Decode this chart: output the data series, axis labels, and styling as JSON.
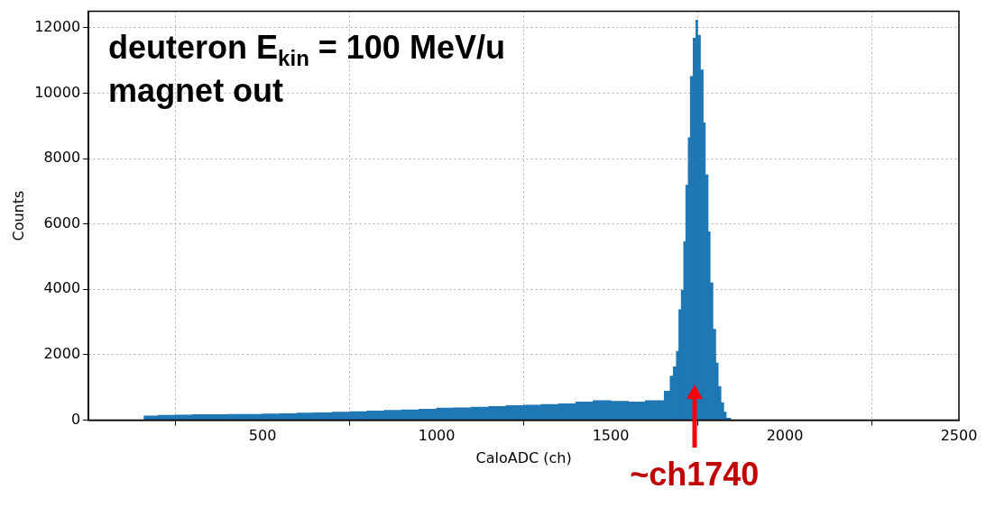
{
  "chart_data": {
    "type": "histogram",
    "xlabel": "CaloADC (ch)",
    "ylabel": "Counts",
    "color": "#1f77b4",
    "bins": [
      160,
      200,
      250,
      300,
      350,
      400,
      450,
      500,
      550,
      600,
      650,
      700,
      750,
      800,
      850,
      900,
      950,
      1000,
      1050,
      1100,
      1150,
      1200,
      1250,
      1300,
      1350,
      1400,
      1450,
      1500,
      1550,
      1600,
      1654,
      1671,
      1680,
      1689,
      1696,
      1703,
      1710,
      1716,
      1723,
      1729,
      1737,
      1745,
      1749,
      1757,
      1765,
      1771,
      1779,
      1785,
      1793,
      1801,
      1808,
      1816,
      1824,
      1831,
      1844
    ],
    "values": [
      130,
      150,
      160,
      170,
      170,
      180,
      180,
      190,
      200,
      220,
      230,
      250,
      260,
      280,
      300,
      320,
      340,
      370,
      380,
      400,
      420,
      450,
      460,
      480,
      500,
      560,
      600,
      580,
      560,
      600,
      890,
      1350,
      1630,
      2110,
      3380,
      3980,
      5460,
      7190,
      8640,
      10510,
      11680,
      12230,
      11770,
      10710,
      9090,
      7500,
      5760,
      4200,
      2780,
      1750,
      1030,
      540,
      250,
      60
    ],
    "xlim": [
      0,
      2500
    ],
    "xticks": [
      500,
      1000,
      1500,
      2000,
      2500
    ],
    "ylim": [
      0,
      12500
    ],
    "yticks": [
      0,
      2000,
      4000,
      6000,
      8000,
      10000,
      12000
    ],
    "grid": true,
    "annotations": [
      "deuteron E$_{kin}$ = 100 MeV/u",
      "magnet out",
      {
        "text": "~ch1740",
        "x": 1740,
        "y": 0
      }
    ]
  }
}
